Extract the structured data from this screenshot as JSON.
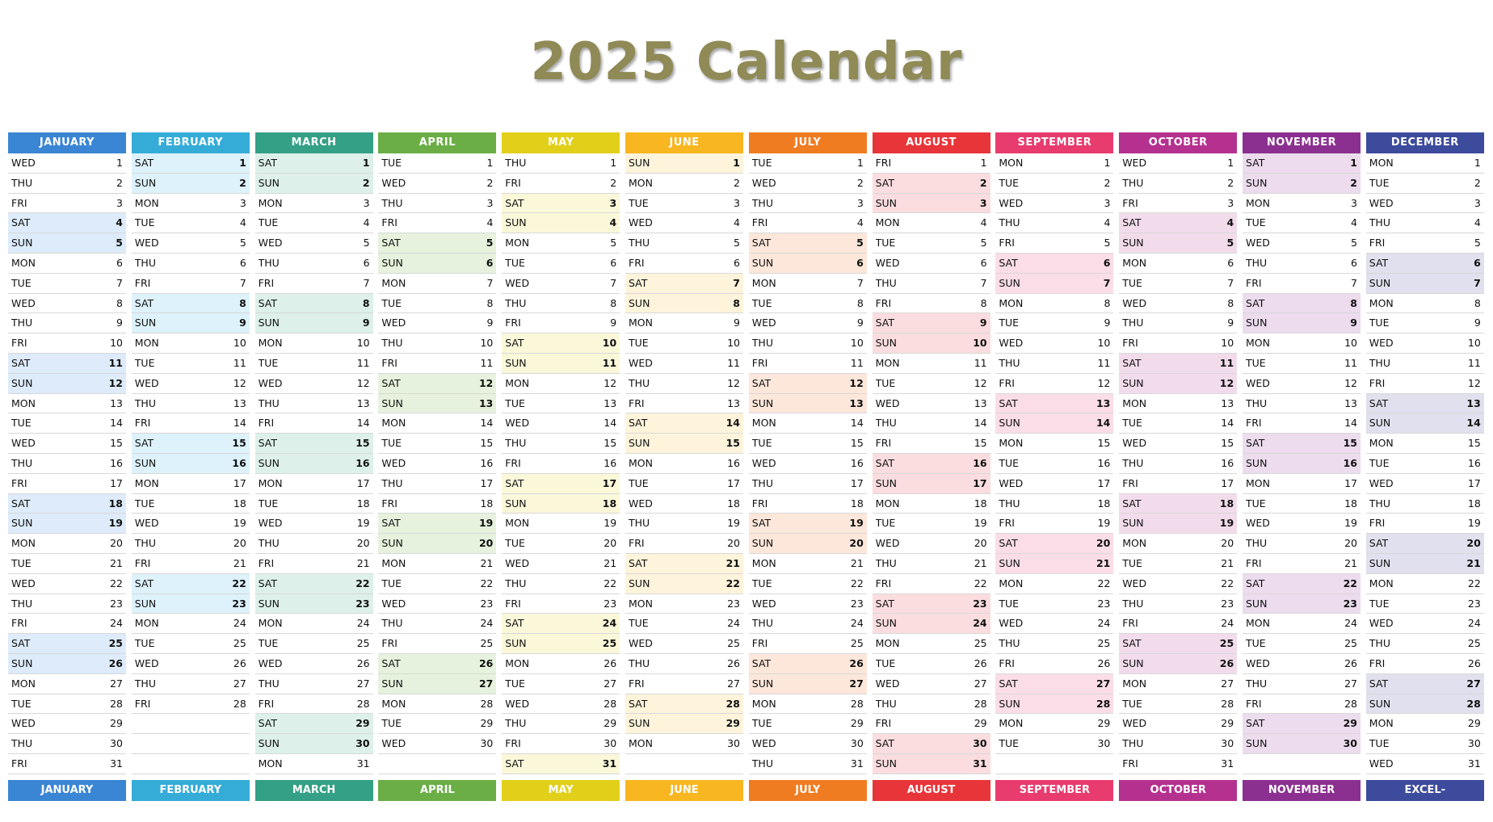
{
  "title": "2025 Calendar",
  "footer_last": "EXCEL-PRATIQUE.COM",
  "months": [
    {
      "name": "JANUARY",
      "color": "#3a86d4",
      "tint": "#ddebfa",
      "days": "WED THU FRI SAT SUN MON TUE WED THU FRI SAT SUN MON TUE WED THU FRI SAT SUN MON TUE WED THU FRI SAT SUN MON TUE WED THU FRI"
    },
    {
      "name": "FEBRUARY",
      "color": "#35acd8",
      "tint": "#ddf2fb",
      "days": "SAT SUN MON TUE WED THU FRI SAT SUN MON TUE WED THU FRI SAT SUN MON TUE WED THU FRI SAT SUN MON TUE WED THU FRI"
    },
    {
      "name": "MARCH",
      "color": "#34a085",
      "tint": "#ddf1ea",
      "days": "SAT SUN MON TUE WED THU FRI SAT SUN MON TUE WED THU FRI SAT SUN MON TUE WED THU FRI SAT SUN MON TUE WED THU FRI SAT SUN MON"
    },
    {
      "name": "APRIL",
      "color": "#6aae45",
      "tint": "#e6f2dd",
      "days": "TUE WED THU FRI SAT SUN MON TUE WED THU FRI SAT SUN MON TUE WED THU FRI SAT SUN MON TUE WED THU FRI SAT SUN MON TUE WED"
    },
    {
      "name": "MAY",
      "color": "#e2cf1a",
      "tint": "#fbf8da",
      "days": "THU FRI SAT SUN MON TUE WED THU FRI SAT SUN MON TUE WED THU FRI SAT SUN MON TUE WED THU FRI SAT SUN MON TUE WED THU FRI SAT"
    },
    {
      "name": "JUNE",
      "color": "#f8b620",
      "tint": "#fdf4db",
      "days": "SUN MON TUE WED THU FRI SAT SUN MON TUE WED THU FRI SAT SUN MON TUE WED THU FRI SAT SUN MON TUE WED THU FRI SAT SUN MON"
    },
    {
      "name": "JULY",
      "color": "#f07c22",
      "tint": "#fde7da",
      "days": "TUE WED THU FRI SAT SUN MON TUE WED THU FRI SAT SUN MON TUE WED THU FRI SAT SUN MON TUE WED THU FRI SAT SUN MON TUE WED THU"
    },
    {
      "name": "AUGUST",
      "color": "#e8353a",
      "tint": "#fbdddf",
      "days": "FRI SAT SUN MON TUE WED THU FRI SAT SUN MON TUE WED THU FRI SAT SUN MON TUE WED THU FRI SAT SUN MON TUE WED THU FRI SAT SUN"
    },
    {
      "name": "SEPTEMBER",
      "color": "#e83b6e",
      "tint": "#fbdde8",
      "days": "MON TUE WED THU FRI SAT SUN MON TUE WED THU FRI SAT SUN MON TUE WED THU FRI SAT SUN MON TUE WED THU FRI SAT SUN MON TUE"
    },
    {
      "name": "OCTOBER",
      "color": "#b5318f",
      "tint": "#f2dcec",
      "days": "WED THU FRI SAT SUN MON TUE WED THU FRI SAT SUN MON TUE WED THU FRI SAT SUN MON TUE WED THU FRI SAT SUN MON TUE WED THU FRI"
    },
    {
      "name": "NOVEMBER",
      "color": "#8b3090",
      "tint": "#ecdcee",
      "days": "SAT SUN MON TUE WED THU FRI SAT SUN MON TUE WED THU FRI SAT SUN MON TUE WED THU FRI SAT SUN MON TUE WED THU FRI SAT SUN"
    },
    {
      "name": "DECEMBER",
      "color": "#3d4b9c",
      "tint": "#e1e0ee",
      "days": "MON TUE WED THU FRI SAT SUN MON TUE WED THU FRI SAT SUN MON TUE WED THU FRI SAT SUN MON TUE WED THU FRI SAT SUN MON TUE WED"
    }
  ]
}
